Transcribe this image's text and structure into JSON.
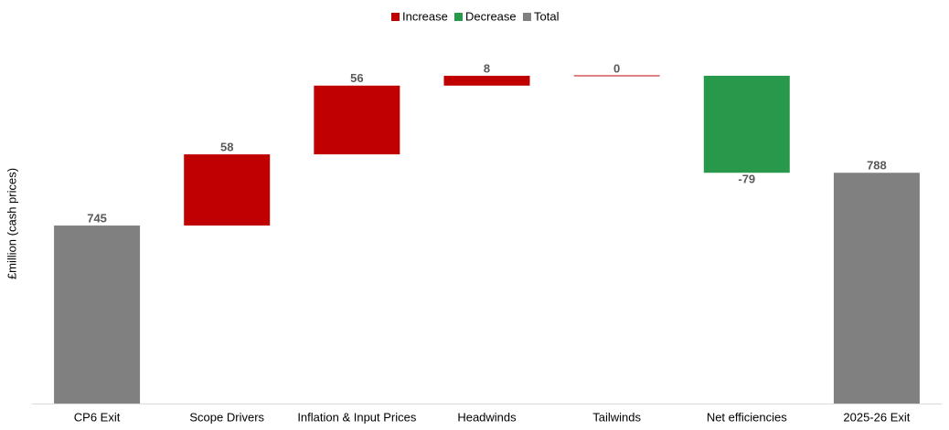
{
  "chart_data": {
    "type": "waterfall",
    "y_label": "£million (cash prices)",
    "categories": [
      "CP6 Exit",
      "Scope Drivers",
      "Inflation & Input Prices",
      "Headwinds",
      "Tailwinds",
      "Net efficiencies",
      "2025-26 Exit"
    ],
    "values": [
      745,
      58,
      56,
      8,
      0,
      -79,
      788
    ],
    "measure": [
      "total",
      "relative",
      "relative",
      "relative",
      "relative",
      "relative",
      "total"
    ],
    "series": [
      {
        "name": "Increase",
        "color": "#c00000"
      },
      {
        "name": "Decrease",
        "color": "#28994b"
      },
      {
        "name": "Total",
        "color": "#808080"
      }
    ],
    "ylim": [
      600,
      899
    ],
    "legend": "top"
  }
}
